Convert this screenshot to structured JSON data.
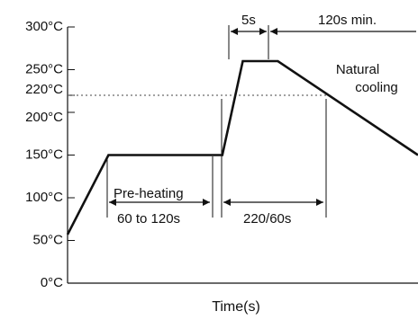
{
  "chart_data": {
    "type": "line",
    "title": "",
    "xlabel": "Time(s)",
    "ylabel": "",
    "ylim": [
      0,
      300
    ],
    "y_ticks": [
      {
        "value": 300,
        "label": "300°C"
      },
      {
        "value": 250,
        "label": "250°C"
      },
      {
        "value": 220,
        "label": "220°C"
      },
      {
        "value": 200,
        "label": "200°C"
      },
      {
        "value": 150,
        "label": "150°C"
      },
      {
        "value": 100,
        "label": "100°C"
      },
      {
        "value": 50,
        "label": "50°C"
      },
      {
        "value": 0,
        "label": "0°C"
      }
    ],
    "series": [
      {
        "values": [
          [
            0,
            57
          ],
          [
            14,
            150
          ],
          [
            53,
            150
          ],
          [
            60,
            260
          ],
          [
            72,
            260
          ],
          [
            120,
            150
          ]
        ]
      }
    ],
    "reference_lines": [
      {
        "value": 220
      }
    ],
    "annotations": {
      "preheating_label": "Pre-heating",
      "preheating_duration": "60 to 120s",
      "soak_duration": "220/60s",
      "peak_duration": "5s",
      "cooling_duration": "120s min.",
      "cooling_label_line1": "Natural",
      "cooling_label_line2": "cooling"
    }
  }
}
